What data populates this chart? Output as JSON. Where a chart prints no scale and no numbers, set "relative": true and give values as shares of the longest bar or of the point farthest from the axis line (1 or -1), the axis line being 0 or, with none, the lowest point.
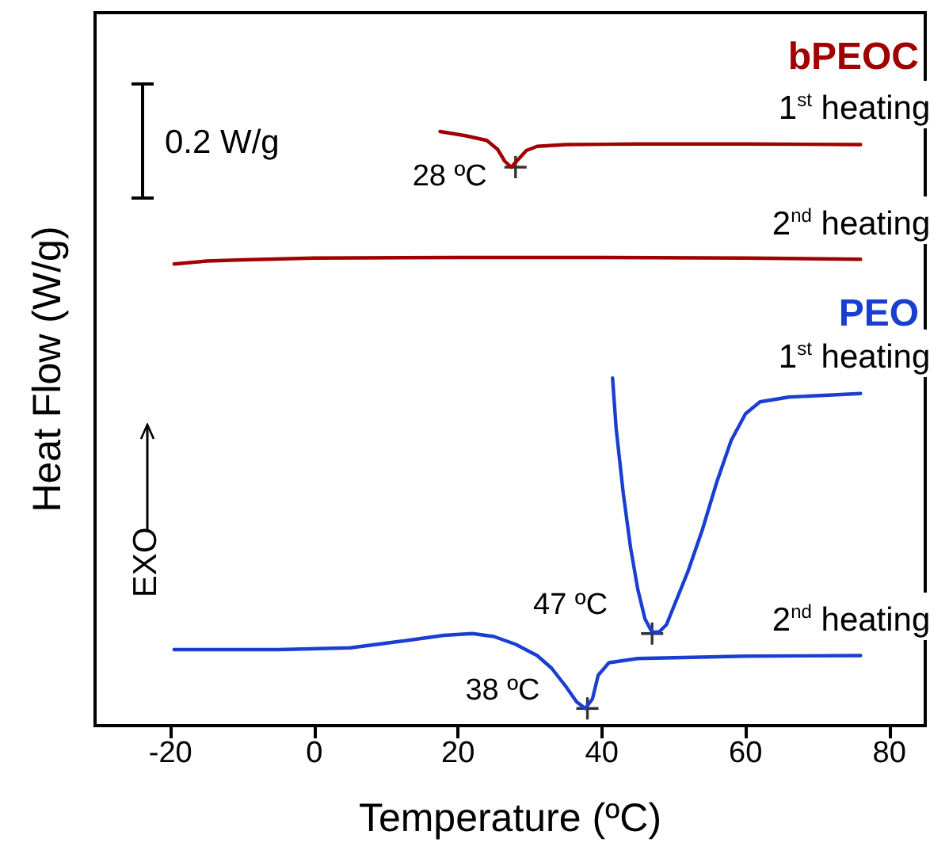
{
  "chart_data": {
    "type": "line",
    "relative": true,
    "xlabel": "Temperature (ºC)",
    "ylabel": "Heat Flow (W/g)",
    "xlim": [
      -30.5,
      85
    ],
    "xticks": [
      -20,
      0,
      20,
      40,
      60,
      80
    ],
    "grid": false,
    "marker": "none",
    "line_style": "solid",
    "annotations": [
      "bPEOC",
      "PEO",
      "0.2 W/g",
      "EXO",
      {
        "text": "28 ºC",
        "x": 28,
        "y": 0.94
      },
      {
        "text": "47 ºC",
        "x": 47,
        "y": 0.155
      },
      {
        "text": "38 ºC",
        "x": 38,
        "y": 0.029
      }
    ],
    "series": [
      {
        "name": "1$^{st}$ heating",
        "color": "#a00000",
        "x": [
          17.5,
          21,
          24,
          25.5,
          26.5,
          27.4,
          28.3,
          29.5,
          31,
          35,
          45,
          60,
          76
        ],
        "values": [
          1.0,
          0.993,
          0.985,
          0.97,
          0.95,
          0.94,
          0.952,
          0.968,
          0.975,
          0.978,
          0.979,
          0.979,
          0.978
        ]
      },
      {
        "name": "2$^{nd}$ heating",
        "color": "#a00000",
        "x": [
          -19.5,
          -15,
          -10,
          0,
          20,
          40,
          60,
          76
        ],
        "values": [
          0.777,
          0.782,
          0.784,
          0.787,
          0.788,
          0.788,
          0.787,
          0.785
        ]
      },
      {
        "name": "1$^{st}$ heating",
        "color": "#1a3fd0",
        "x": [
          41.5,
          42,
          43,
          44,
          45,
          46,
          47,
          48,
          49,
          50,
          52,
          54,
          56,
          58,
          60,
          62,
          66,
          76
        ],
        "values": [
          0.585,
          0.5,
          0.39,
          0.3,
          0.23,
          0.18,
          0.157,
          0.158,
          0.17,
          0.2,
          0.26,
          0.33,
          0.41,
          0.48,
          0.525,
          0.545,
          0.553,
          0.559
        ]
      },
      {
        "name": "2$^{nd}$ heating",
        "color": "#1a3fd0",
        "x": [
          -19.5,
          -5,
          5,
          12,
          18,
          22,
          25,
          28,
          31,
          33,
          35,
          36.5,
          37.7,
          38.7,
          39.5,
          41,
          45,
          60,
          76
        ],
        "values": [
          0.128,
          0.128,
          0.131,
          0.142,
          0.152,
          0.155,
          0.15,
          0.137,
          0.118,
          0.097,
          0.066,
          0.04,
          0.029,
          0.045,
          0.085,
          0.106,
          0.113,
          0.117,
          0.118
        ]
      },
      {
        "type": "scatter",
        "marker": "cross",
        "color": "#000000",
        "x": [
          28,
          47,
          38
        ],
        "values": [
          0.94,
          0.155,
          0.029
        ]
      }
    ]
  }
}
